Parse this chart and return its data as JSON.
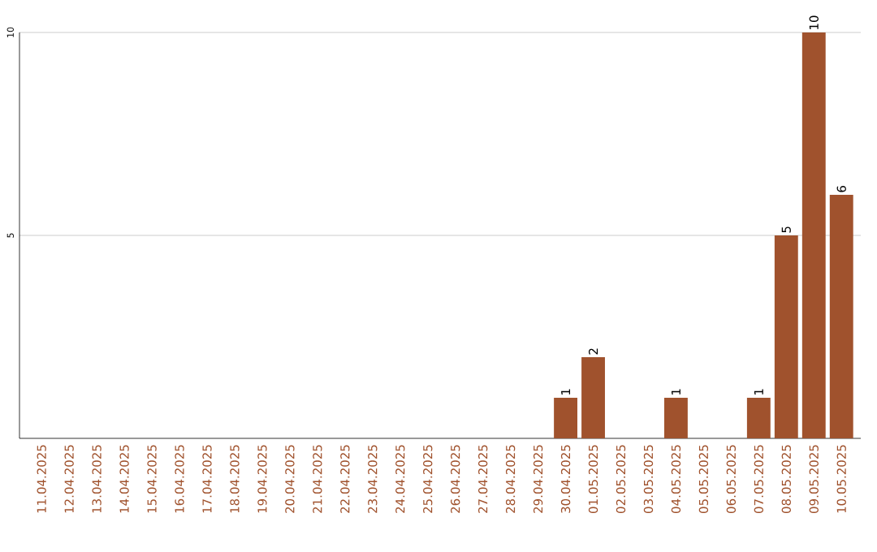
{
  "chart_data": {
    "type": "bar",
    "categories": [
      "11.04.2025",
      "12.04.2025",
      "13.04.2025",
      "14.04.2025",
      "15.04.2025",
      "16.04.2025",
      "17.04.2025",
      "18.04.2025",
      "19.04.2025",
      "20.04.2025",
      "21.04.2025",
      "22.04.2025",
      "23.04.2025",
      "24.04.2025",
      "25.04.2025",
      "26.04.2025",
      "27.04.2025",
      "28.04.2025",
      "29.04.2025",
      "30.04.2025",
      "01.05.2025",
      "02.05.2025",
      "03.05.2025",
      "04.05.2025",
      "05.05.2025",
      "06.05.2025",
      "07.05.2025",
      "08.05.2025",
      "09.05.2025",
      "10.05.2025"
    ],
    "values": [
      0,
      0,
      0,
      0,
      0,
      0,
      0,
      0,
      0,
      0,
      0,
      0,
      0,
      0,
      0,
      0,
      0,
      0,
      0,
      1,
      2,
      0,
      0,
      1,
      0,
      0,
      1,
      5,
      10,
      6
    ],
    "value_labels": [
      null,
      null,
      null,
      null,
      null,
      null,
      null,
      null,
      null,
      null,
      null,
      null,
      null,
      null,
      null,
      null,
      null,
      null,
      null,
      "1",
      "2",
      null,
      null,
      "1",
      null,
      null,
      "1",
      "5",
      "10",
      "6"
    ],
    "color": "#a0522d",
    "ylim": [
      0,
      10
    ],
    "yticks": [
      5,
      10
    ],
    "grid": "y"
  }
}
